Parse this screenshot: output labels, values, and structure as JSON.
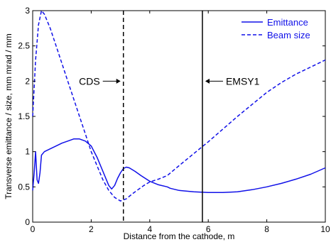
{
  "chart_data": {
    "type": "line",
    "title": "",
    "xlabel": "Distance from the cathode, m",
    "ylabel": "Transverse emittance / size, mm mrad / mm",
    "xlim": [
      0,
      10
    ],
    "ylim": [
      0,
      3
    ],
    "x_ticks": [
      0,
      2,
      4,
      6,
      8,
      10
    ],
    "y_ticks": [
      0,
      0.5,
      1,
      1.5,
      2,
      2.5,
      3
    ],
    "grid": false,
    "legend_position": "top-right",
    "colors": {
      "series": "#1010e8",
      "markers": "#000000",
      "axes": "#000000"
    },
    "series": [
      {
        "name": "Emittance",
        "style": "solid",
        "x": [
          0,
          0.05,
          0.1,
          0.15,
          0.2,
          0.25,
          0.3,
          0.4,
          0.6,
          0.8,
          1.0,
          1.2,
          1.4,
          1.6,
          1.8,
          2.0,
          2.2,
          2.4,
          2.6,
          2.7,
          2.8,
          2.9,
          3.0,
          3.1,
          3.2,
          3.3,
          3.5,
          3.7,
          4.0,
          4.3,
          4.6,
          4.7,
          5.0,
          5.5,
          6.0,
          6.5,
          7.0,
          7.5,
          8.0,
          8.5,
          9.0,
          9.5,
          10.0
        ],
        "y": [
          0.45,
          0.7,
          1.0,
          0.6,
          0.55,
          0.7,
          0.95,
          1.0,
          1.04,
          1.08,
          1.12,
          1.15,
          1.18,
          1.18,
          1.15,
          1.08,
          0.92,
          0.72,
          0.52,
          0.47,
          0.52,
          0.62,
          0.7,
          0.76,
          0.78,
          0.77,
          0.72,
          0.66,
          0.58,
          0.53,
          0.5,
          0.48,
          0.45,
          0.43,
          0.42,
          0.42,
          0.43,
          0.46,
          0.5,
          0.55,
          0.61,
          0.68,
          0.77
        ]
      },
      {
        "name": "Beam size",
        "style": "dashed",
        "x": [
          0,
          0.1,
          0.2,
          0.3,
          0.4,
          0.6,
          0.8,
          1.0,
          1.2,
          1.4,
          1.6,
          1.8,
          2.0,
          2.2,
          2.4,
          2.6,
          2.8,
          3.0,
          3.2,
          3.4,
          3.6,
          3.8,
          4.0,
          4.3,
          4.6,
          5.0,
          5.5,
          6.0,
          6.5,
          7.0,
          7.5,
          8.0,
          8.5,
          9.0,
          9.5,
          10.0
        ],
        "y": [
          1.5,
          2.3,
          2.8,
          3.0,
          2.95,
          2.75,
          2.5,
          2.25,
          2.0,
          1.75,
          1.5,
          1.25,
          1.0,
          0.8,
          0.6,
          0.45,
          0.35,
          0.3,
          0.33,
          0.4,
          0.46,
          0.52,
          0.57,
          0.61,
          0.66,
          0.8,
          0.97,
          1.14,
          1.32,
          1.5,
          1.67,
          1.84,
          1.98,
          2.1,
          2.2,
          2.3
        ]
      }
    ],
    "annotations": [
      {
        "label": "CDS",
        "x": 3.1,
        "line_style": "dashed",
        "arrow": "right"
      },
      {
        "label": "EMSY1",
        "x": 5.8,
        "line_style": "solid",
        "arrow": "left"
      }
    ]
  }
}
